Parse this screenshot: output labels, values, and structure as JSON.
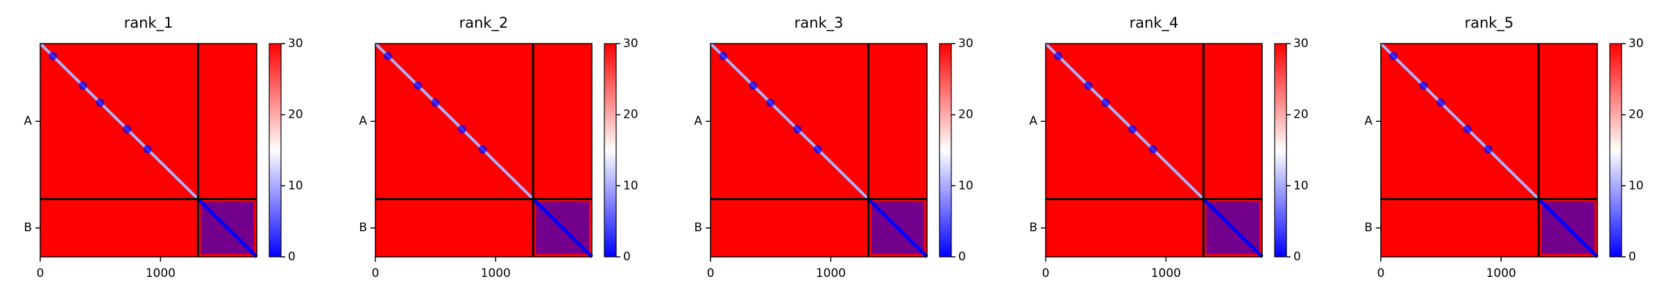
{
  "chart_data": [
    {
      "type": "heatmap",
      "title": "rank_1",
      "xlim": [
        0,
        1800
      ],
      "xticks": [
        0,
        1000
      ],
      "chains": [
        "A",
        "B"
      ],
      "chain_bounds": [
        0,
        1312,
        1800
      ],
      "colormap": [
        "#0000ff",
        "#ffffff",
        "#ff0000"
      ],
      "clim": [
        0,
        30
      ],
      "cticks": [
        0,
        10,
        20,
        30
      ]
    },
    {
      "type": "heatmap",
      "title": "rank_2",
      "xlim": [
        0,
        1800
      ],
      "xticks": [
        0,
        1000
      ],
      "chains": [
        "A",
        "B"
      ],
      "chain_bounds": [
        0,
        1312,
        1800
      ],
      "colormap": [
        "#0000ff",
        "#ffffff",
        "#ff0000"
      ],
      "clim": [
        0,
        30
      ],
      "cticks": [
        0,
        10,
        20,
        30
      ]
    },
    {
      "type": "heatmap",
      "title": "rank_3",
      "xlim": [
        0,
        1800
      ],
      "xticks": [
        0,
        1000
      ],
      "chains": [
        "A",
        "B"
      ],
      "chain_bounds": [
        0,
        1312,
        1800
      ],
      "colormap": [
        "#0000ff",
        "#ffffff",
        "#ff0000"
      ],
      "clim": [
        0,
        30
      ],
      "cticks": [
        0,
        10,
        20,
        30
      ]
    },
    {
      "type": "heatmap",
      "title": "rank_4",
      "xlim": [
        0,
        1800
      ],
      "xticks": [
        0,
        1000
      ],
      "chains": [
        "A",
        "B"
      ],
      "chain_bounds": [
        0,
        1312,
        1800
      ],
      "colormap": [
        "#0000ff",
        "#ffffff",
        "#ff0000"
      ],
      "clim": [
        0,
        30
      ],
      "cticks": [
        0,
        10,
        20,
        30
      ]
    },
    {
      "type": "heatmap",
      "title": "rank_5",
      "xlim": [
        0,
        1800
      ],
      "xticks": [
        0,
        1000
      ],
      "chains": [
        "A",
        "B"
      ],
      "chain_bounds": [
        0,
        1312,
        1800
      ],
      "colormap": [
        "#0000ff",
        "#ffffff",
        "#ff0000"
      ],
      "clim": [
        0,
        30
      ],
      "cticks": [
        0,
        10,
        20,
        30
      ]
    }
  ]
}
